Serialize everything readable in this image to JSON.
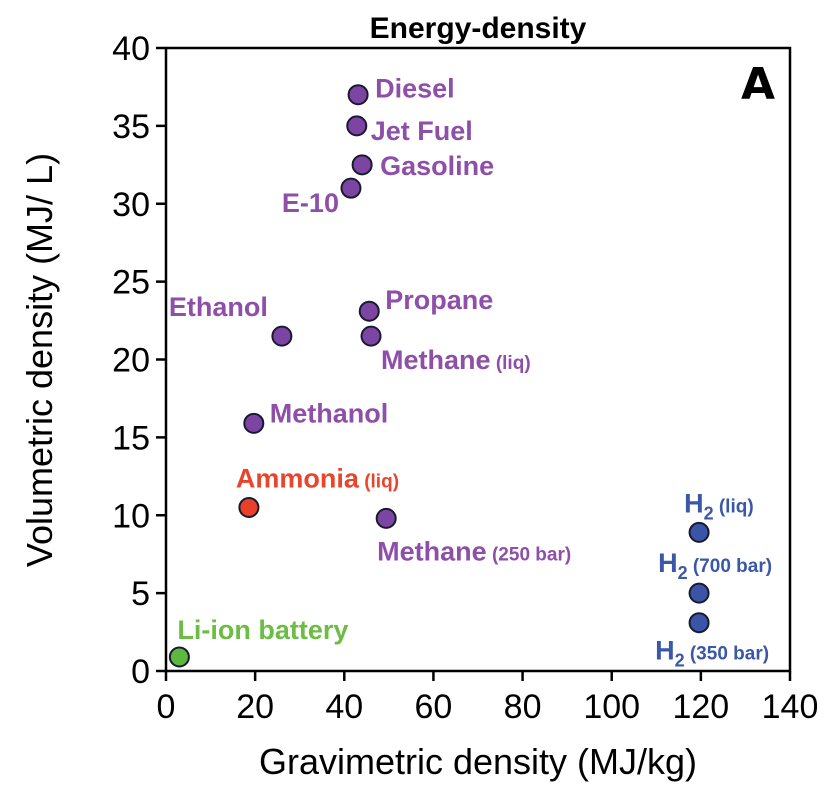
{
  "chart_data": {
    "type": "scatter",
    "title": "Energy-density",
    "panel_label": "A",
    "xlabel": "Gravimetric density (MJ/kg)",
    "ylabel": "Volumetric density (MJ/ L)",
    "xlim": [
      0,
      140
    ],
    "ylim": [
      0,
      40
    ],
    "xticks": [
      0,
      20,
      40,
      60,
      80,
      100,
      120,
      140
    ],
    "yticks": [
      0,
      5,
      10,
      15,
      20,
      25,
      30,
      35,
      40
    ],
    "grid": false,
    "colors": {
      "purple": "#8e4fa8",
      "purple_fill": "#7d45a3",
      "red": "#e8452c",
      "red_fill": "#e8402a",
      "blue": "#3b58a8",
      "blue_fill": "#3a55a8",
      "green": "#6dbd45",
      "green_fill": "#5db840"
    },
    "points": [
      {
        "name": "Diesel",
        "x": 43.1,
        "y": 37.0,
        "color": "purple"
      },
      {
        "name": "Jet Fuel",
        "x": 42.8,
        "y": 35.0,
        "color": "purple"
      },
      {
        "name": "Gasoline",
        "x": 44.0,
        "y": 32.5,
        "color": "purple"
      },
      {
        "name": "E-10",
        "x": 41.5,
        "y": 31.0,
        "color": "purple"
      },
      {
        "name": "Propane",
        "x": 45.6,
        "y": 23.1,
        "color": "purple"
      },
      {
        "name": "Ethanol",
        "x": 26.0,
        "y": 21.5,
        "color": "purple"
      },
      {
        "name": "Methane",
        "suffix": "(liq)",
        "x": 46.0,
        "y": 21.5,
        "color": "purple"
      },
      {
        "name": "Methanol",
        "x": 19.7,
        "y": 15.9,
        "color": "purple"
      },
      {
        "name": "Ammonia",
        "suffix": "(liq)",
        "x": 18.6,
        "y": 10.5,
        "color": "red"
      },
      {
        "name": "Methane",
        "suffix": "(250 bar)",
        "x": 49.4,
        "y": 9.8,
        "color": "purple"
      },
      {
        "name": "H",
        "sub": "2",
        "suffix": "(liq)",
        "x": 119.6,
        "y": 8.9,
        "color": "blue"
      },
      {
        "name": "H",
        "sub": "2",
        "suffix": "(700 bar)",
        "x": 119.6,
        "y": 5.0,
        "color": "blue"
      },
      {
        "name": "H",
        "sub": "2",
        "suffix": "(350 bar)",
        "x": 119.6,
        "y": 3.1,
        "color": "blue"
      },
      {
        "name": "Li-ion battery",
        "x": 3.0,
        "y": 0.9,
        "color": "green"
      }
    ]
  }
}
